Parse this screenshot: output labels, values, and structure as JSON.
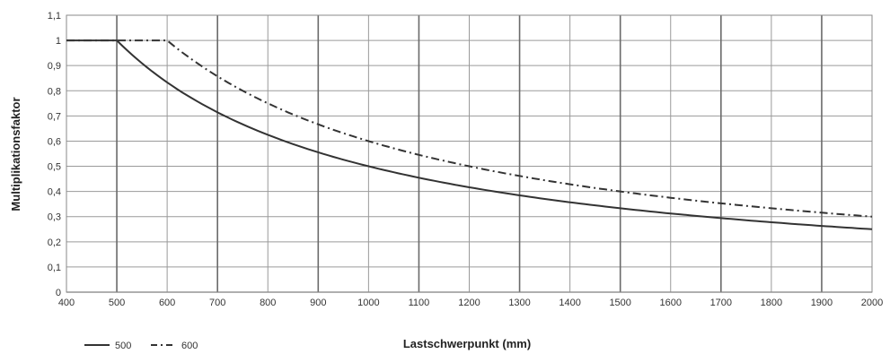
{
  "chart_data": {
    "type": "line",
    "title": "",
    "xlabel": "Lastschwerpunkt (mm)",
    "ylabel": "Multiplikationsfaktor",
    "xlim": [
      400,
      2000
    ],
    "ylim": [
      0,
      1.1
    ],
    "x_ticks": [
      "400",
      "500",
      "600",
      "700",
      "800",
      "900",
      "1000",
      "1100",
      "1200",
      "1300",
      "1400",
      "1500",
      "1600",
      "1700",
      "1800",
      "1900",
      "2000"
    ],
    "y_ticks": [
      "0",
      "0,1",
      "0,2",
      "0,3",
      "0,4",
      "0,5",
      "0,6",
      "0,7",
      "0,8",
      "0,9",
      "1",
      "1,1"
    ],
    "grid": true,
    "legend_position": "bottom-left",
    "series": [
      {
        "name": "500",
        "line_style": "solid",
        "color": "#333333",
        "x": [
          400,
          500,
          600,
          700,
          800,
          900,
          1000,
          1100,
          1200,
          1300,
          1400,
          1500,
          1600,
          1700,
          1800,
          1900,
          2000
        ],
        "y": [
          1,
          1,
          0.833,
          0.714,
          0.625,
          0.556,
          0.5,
          0.455,
          0.417,
          0.385,
          0.357,
          0.333,
          0.313,
          0.294,
          0.278,
          0.263,
          0.25
        ]
      },
      {
        "name": "600",
        "line_style": "dash-dot",
        "color": "#333333",
        "x": [
          400,
          500,
          600,
          700,
          800,
          900,
          1000,
          1100,
          1200,
          1300,
          1400,
          1500,
          1600,
          1700,
          1800,
          1900,
          2000
        ],
        "y": [
          1,
          1,
          1,
          0.857,
          0.75,
          0.667,
          0.6,
          0.545,
          0.5,
          0.462,
          0.429,
          0.4,
          0.375,
          0.353,
          0.333,
          0.316,
          0.3
        ]
      }
    ]
  }
}
